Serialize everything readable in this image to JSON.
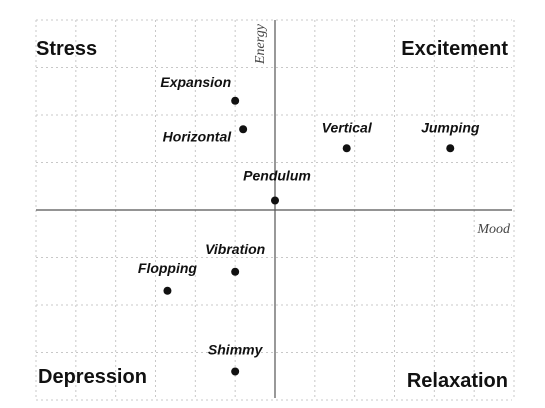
{
  "chart_data": {
    "type": "scatter",
    "title": "",
    "xlabel": "Mood",
    "ylabel": "Energy",
    "xlim": [
      -6,
      6
    ],
    "ylim": [
      -4,
      4
    ],
    "grid": true,
    "quadrants": {
      "top_left": "Stress",
      "top_right": "Excitement",
      "bottom_left": "Depression",
      "bottom_right": "Relaxation"
    },
    "points": [
      {
        "label": "Expansion",
        "x": -1.0,
        "y": 2.3
      },
      {
        "label": "Horizontal",
        "x": -0.8,
        "y": 1.7
      },
      {
        "label": "Vertical",
        "x": 1.8,
        "y": 1.3
      },
      {
        "label": "Jumping",
        "x": 4.4,
        "y": 1.3
      },
      {
        "label": "Pendulum",
        "x": 0.0,
        "y": 0.2
      },
      {
        "label": "Vibration",
        "x": -1.0,
        "y": -1.3
      },
      {
        "label": "Flopping",
        "x": -2.7,
        "y": -1.7
      },
      {
        "label": "Shimmy",
        "x": -1.0,
        "y": -3.4
      }
    ],
    "colors": {
      "axis": "#555555",
      "grid": "#c8c8c8",
      "point": "#111111"
    }
  }
}
